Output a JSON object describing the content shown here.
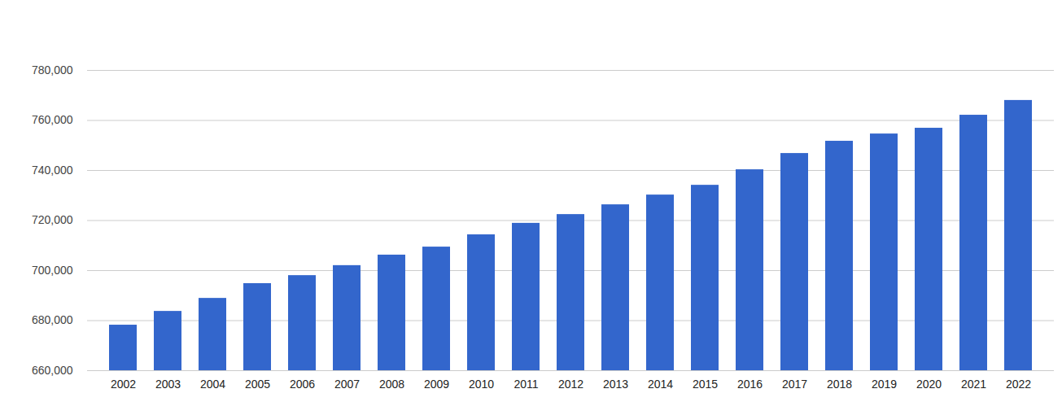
{
  "chart_data": {
    "type": "bar",
    "categories": [
      "2002",
      "2003",
      "2004",
      "2005",
      "2006",
      "2007",
      "2008",
      "2009",
      "2010",
      "2011",
      "2012",
      "2013",
      "2014",
      "2015",
      "2016",
      "2017",
      "2018",
      "2019",
      "2020",
      "2021",
      "2022"
    ],
    "values": [
      678200,
      683700,
      688900,
      694800,
      698000,
      702000,
      706200,
      709400,
      714300,
      718900,
      722400,
      726300,
      730200,
      734100,
      740300,
      746800,
      751700,
      754600,
      756900,
      762100,
      768000
    ],
    "color": "#3366cc",
    "ylim": [
      660000,
      780000
    ],
    "yticks": [
      {
        "value": 660000,
        "label": "660,000"
      },
      {
        "value": 680000,
        "label": "680,000"
      },
      {
        "value": 700000,
        "label": "700,000"
      },
      {
        "value": 720000,
        "label": "720,000"
      },
      {
        "value": 740000,
        "label": "740,000"
      },
      {
        "value": 760000,
        "label": "760,000"
      },
      {
        "value": 780000,
        "label": "780,000"
      }
    ],
    "grid": true
  }
}
